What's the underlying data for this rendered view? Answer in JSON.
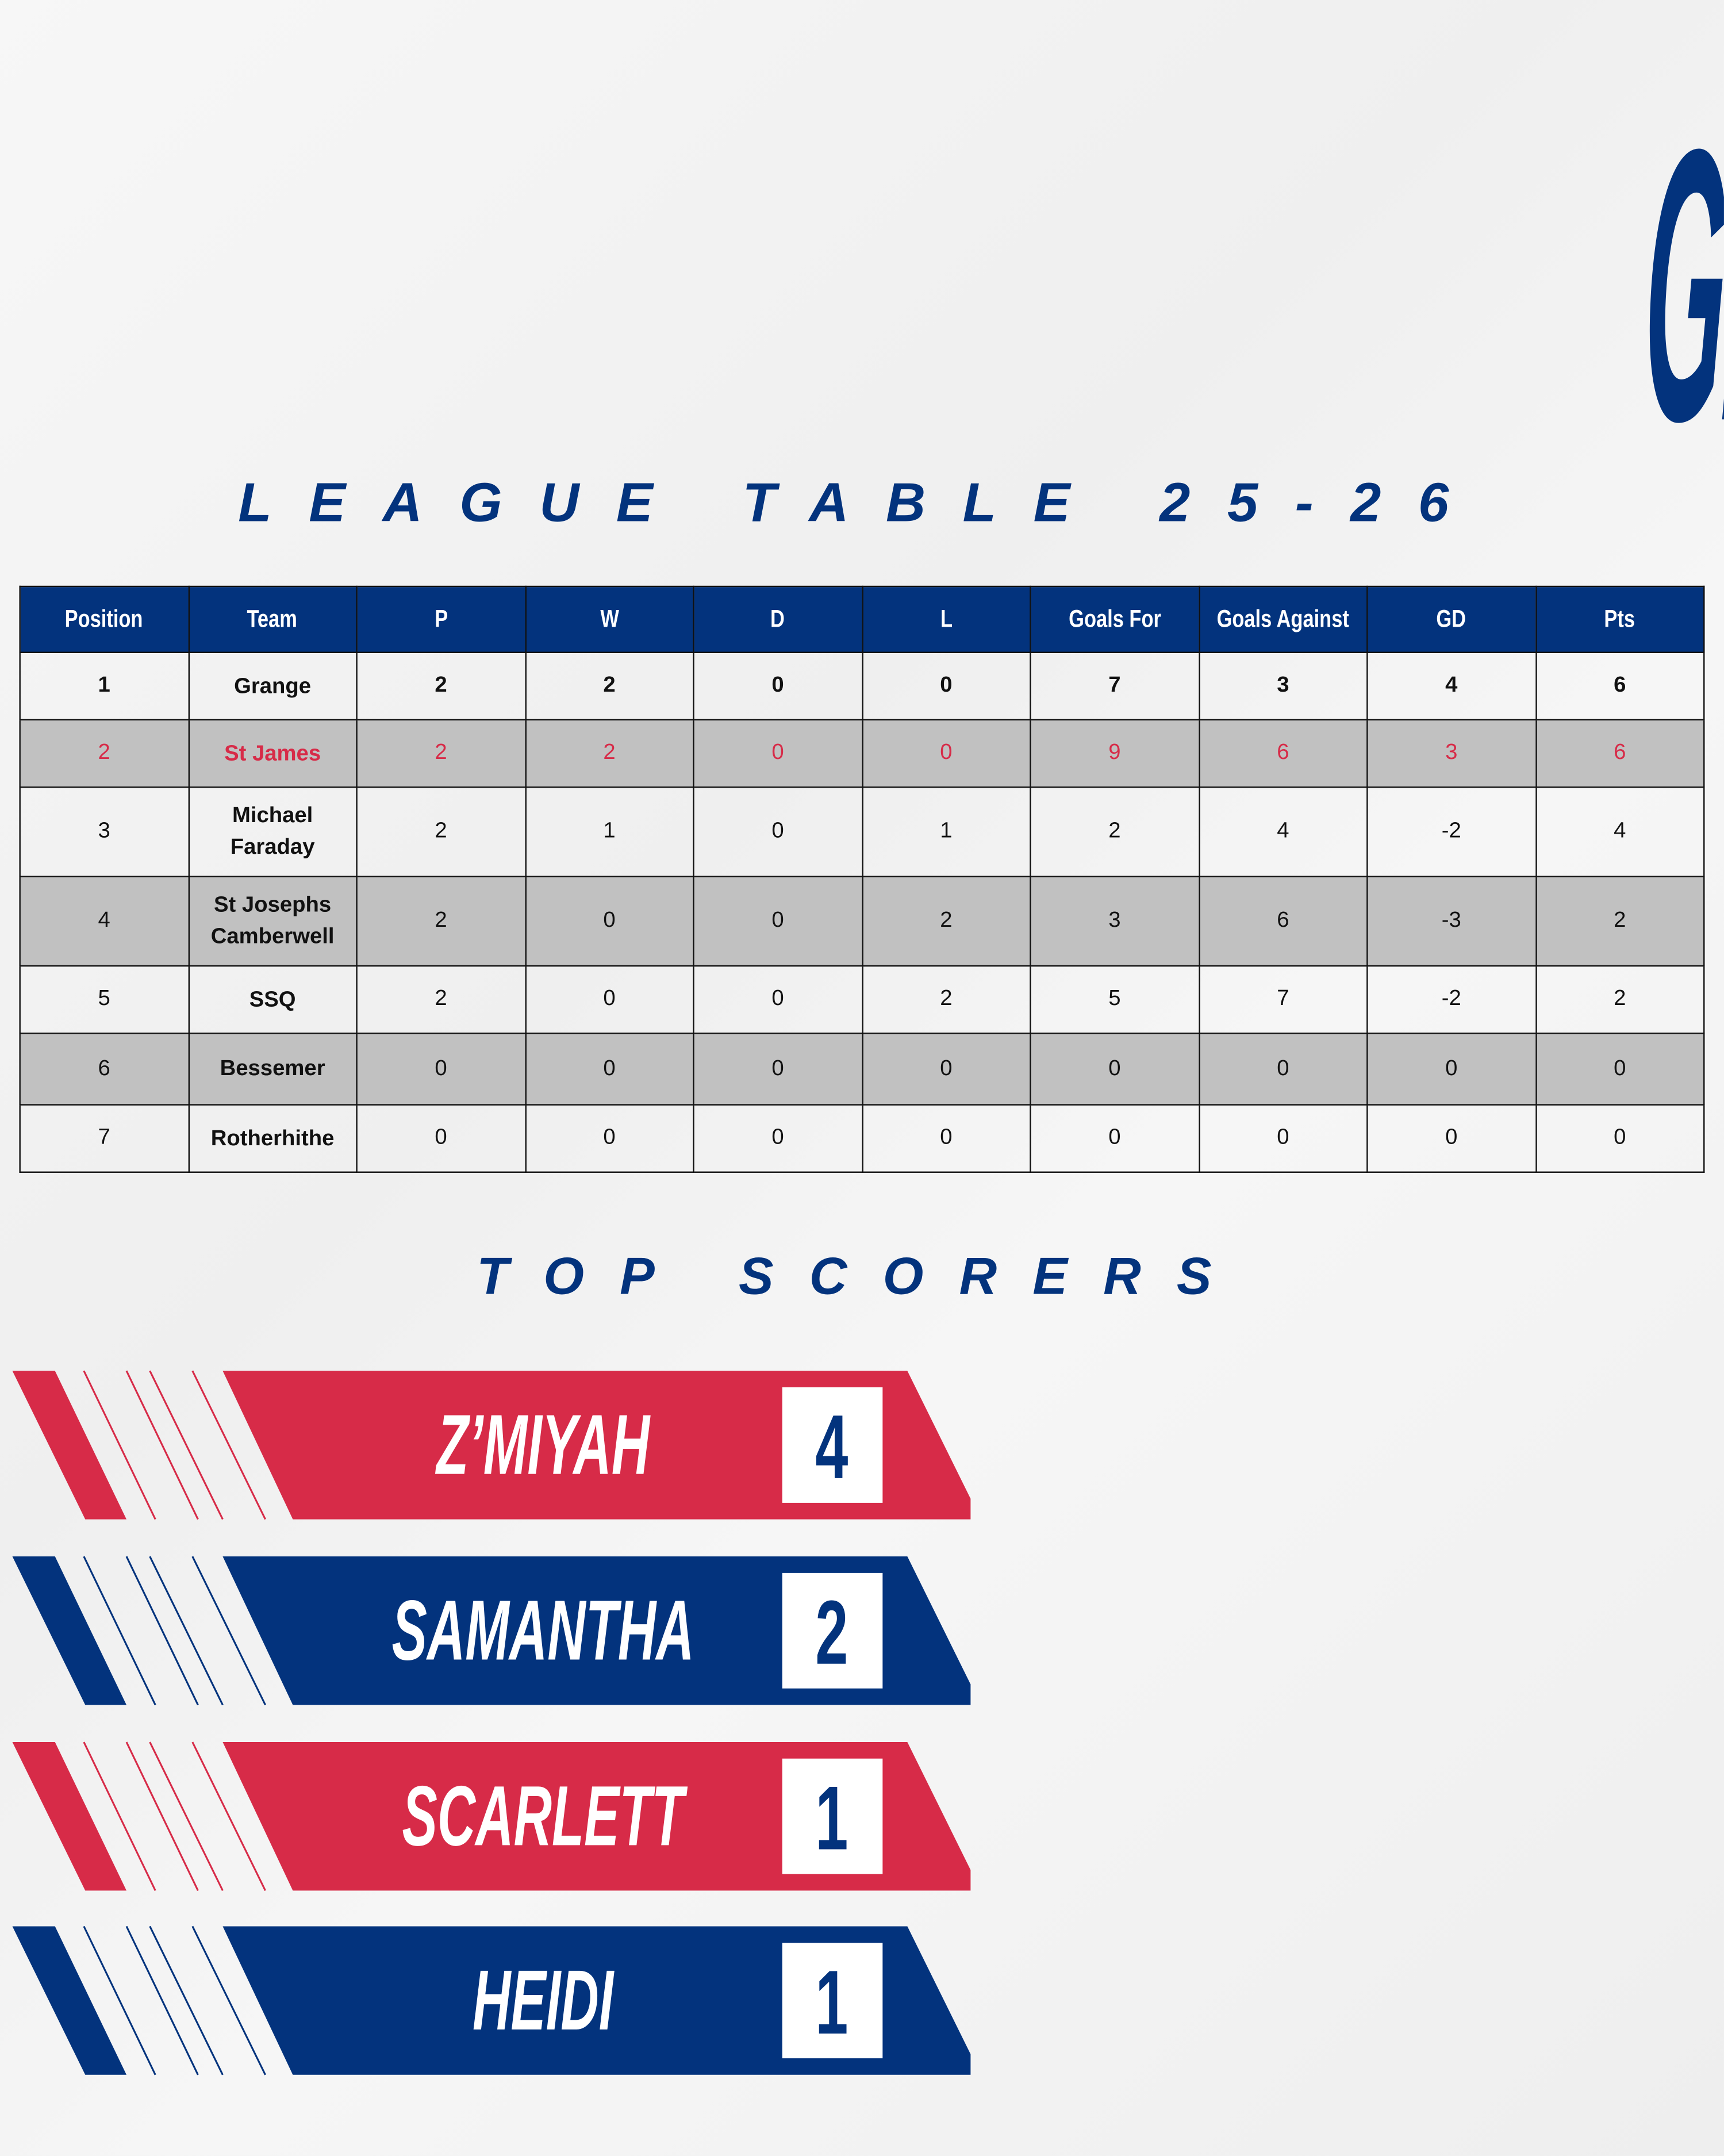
{
  "title": "GIRLS FOOTBALL TEAM",
  "subtitle": "LEAGUE TABLE 25-26",
  "colors": {
    "navy": "#03337d",
    "red": "#d72b48",
    "row_alt": "#c1c1c1"
  },
  "league_table": {
    "headers": [
      "Position",
      "Team",
      "P",
      "W",
      "D",
      "L",
      "Goals For",
      "Goals Against",
      "GD",
      "Pts"
    ],
    "rows": [
      [
        "1",
        "Grange",
        "2",
        "2",
        "0",
        "0",
        "7",
        "3",
        "4",
        "6"
      ],
      [
        "2",
        "St James",
        "2",
        "2",
        "0",
        "0",
        "9",
        "6",
        "3",
        "6"
      ],
      [
        "3",
        "Michael Faraday",
        "2",
        "1",
        "0",
        "1",
        "2",
        "4",
        "-2",
        "4"
      ],
      [
        "4",
        "St Josephs Camberwell",
        "2",
        "0",
        "0",
        "2",
        "3",
        "6",
        "-3",
        "2"
      ],
      [
        "5",
        "SSQ",
        "2",
        "0",
        "0",
        "2",
        "5",
        "7",
        "-2",
        "2"
      ],
      [
        "6",
        "Bessemer",
        "0",
        "0",
        "0",
        "0",
        "0",
        "0",
        "0",
        "0"
      ],
      [
        "7",
        "Rotherhithe",
        "0",
        "0",
        "0",
        "0",
        "0",
        "0",
        "0",
        "0"
      ]
    ]
  },
  "top_scorers": {
    "heading": "TOP SCORERS",
    "players": [
      {
        "name": "Z’MIYAH",
        "goals": "4",
        "color": "red"
      },
      {
        "name": "SAMANTHA",
        "goals": "2",
        "color": "navy"
      },
      {
        "name": "SCARLETT",
        "goals": "1",
        "color": "red"
      },
      {
        "name": "HEIDI",
        "goals": "1",
        "color": "navy"
      }
    ]
  }
}
